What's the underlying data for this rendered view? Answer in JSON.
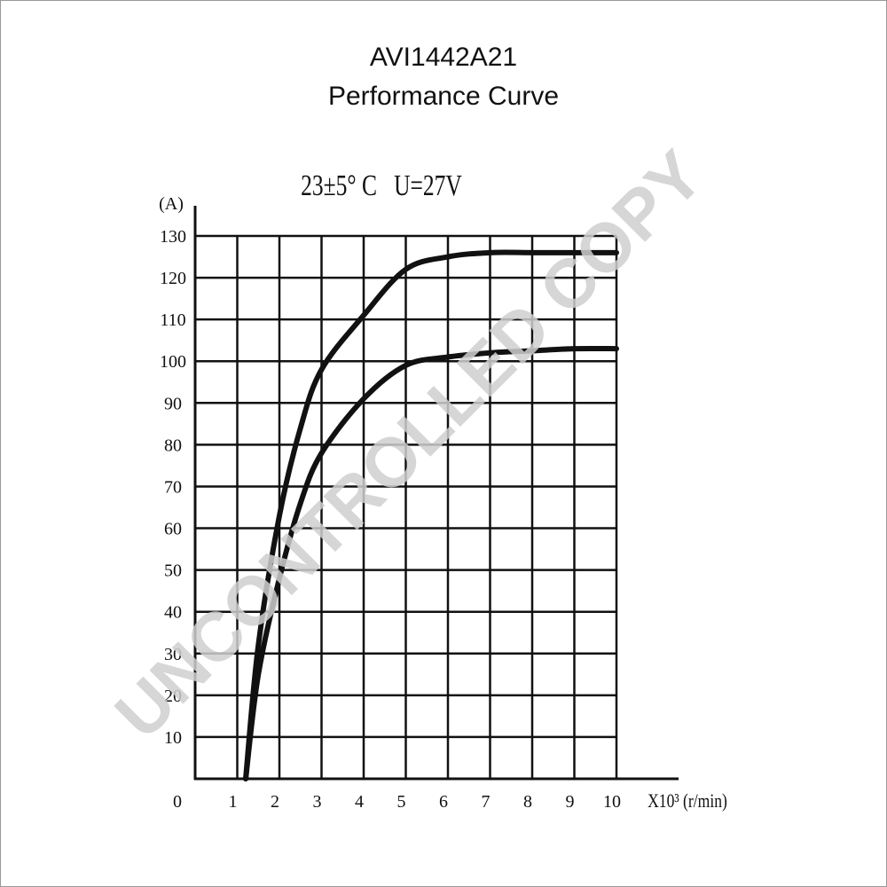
{
  "chart_data": {
    "type": "line",
    "title": "AVI1442A21",
    "subtitle": "Performance Curve",
    "annotation": "23±5° C   U=27V",
    "y_label": "(A)",
    "x_label": "X10³ (r/min)",
    "watermark": "UNCONTROLLED COPY",
    "x": [
      1.2,
      1.5,
      2,
      2.5,
      3,
      4,
      5,
      6,
      7,
      8,
      9,
      10
    ],
    "series": [
      {
        "color": "#111111",
        "values": [
          0,
          32,
          63,
          84,
          98,
          111,
          122,
          125,
          126,
          126,
          126,
          126
        ]
      },
      {
        "color": "#111111",
        "values": [
          0,
          25,
          48,
          66,
          78,
          91,
          99,
          101,
          102,
          102.5,
          103,
          103
        ]
      }
    ],
    "xlim": [
      0,
      10
    ],
    "ylim": [
      0,
      130
    ],
    "xticks": [
      0,
      1,
      2,
      3,
      4,
      5,
      6,
      7,
      8,
      9,
      10
    ],
    "yticks": [
      10,
      20,
      30,
      40,
      50,
      60,
      70,
      80,
      90,
      100,
      110,
      120,
      130
    ],
    "grid": true
  }
}
